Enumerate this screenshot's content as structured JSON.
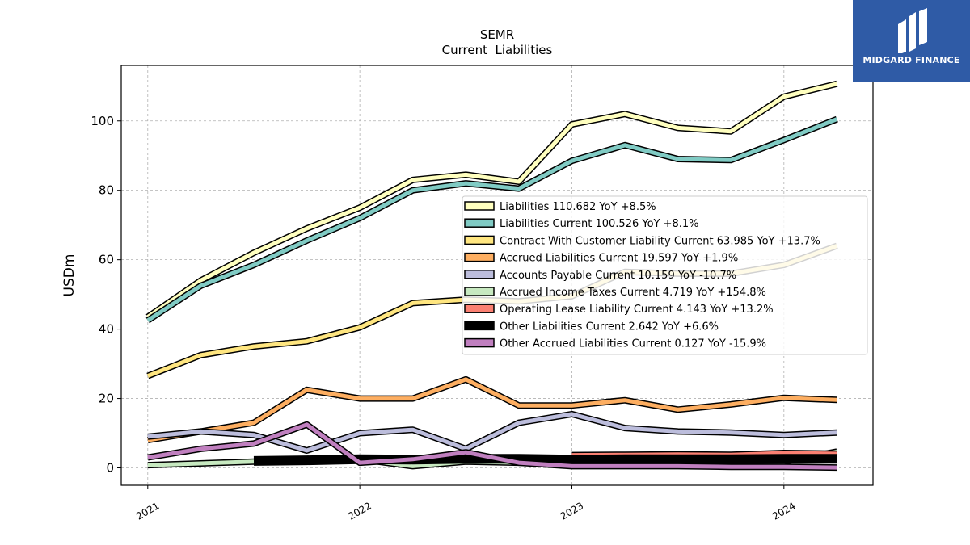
{
  "chart_data": {
    "type": "line",
    "title": "SEMR",
    "subtitle": "Current  Liabilities",
    "ylabel": "USDm",
    "xlabel": "",
    "ylim": [
      -5,
      116
    ],
    "xlim": [
      2020.875,
      2024.42
    ],
    "yticks": [
      0,
      20,
      40,
      60,
      80,
      100
    ],
    "xticks": [
      {
        "value": 2021.0,
        "label": "2021"
      },
      {
        "value": 2022.0,
        "label": "2022"
      },
      {
        "value": 2023.0,
        "label": "2023"
      },
      {
        "value": 2024.0,
        "label": "2024"
      }
    ],
    "grid": true,
    "legend_position": "center-right",
    "series": [
      {
        "name": "Liabilities",
        "legend": "Liabilities  110.682 YoY +8.5%",
        "color": "#ffffbf",
        "x": [
          2021.0,
          2021.25,
          2021.5,
          2021.75,
          2022.0,
          2022.25,
          2022.5,
          2022.75,
          2023.0,
          2023.25,
          2023.5,
          2023.75,
          2024.0,
          2024.25
        ],
        "y": [
          43.5,
          54,
          62,
          69,
          75,
          83,
          84.5,
          82.5,
          99,
          102,
          98,
          97,
          107,
          110.7
        ]
      },
      {
        "name": "Liabilities Current",
        "legend": "Liabilities Current  100.526 YoY +8.1%",
        "color": "#80cbc4",
        "x": [
          2021.0,
          2021.25,
          2021.5,
          2021.75,
          2022.0,
          2022.25,
          2022.5,
          2022.75,
          2023.0,
          2023.25,
          2023.5,
          2023.75,
          2024.0,
          2024.25
        ],
        "y": [
          42.5,
          52.5,
          58.5,
          65.5,
          72,
          80,
          82,
          80.5,
          88.5,
          93,
          89,
          88.7,
          94.5,
          100.5
        ]
      },
      {
        "name": "Contract With Customer Liability Current",
        "legend": "Contract With Customer Liability Current  63.985 YoY +13.7%",
        "color": "#ffe680",
        "x": [
          2021.0,
          2021.25,
          2021.5,
          2021.75,
          2022.0,
          2022.25,
          2022.5,
          2022.75,
          2023.0,
          2023.25,
          2023.5,
          2023.75,
          2024.0,
          2024.25
        ],
        "y": [
          26.5,
          32.5,
          35,
          36.5,
          40.5,
          47.5,
          48.5,
          48,
          49.5,
          56.5,
          56,
          56,
          58.5,
          64
        ]
      },
      {
        "name": "Accrued Liabilities Current",
        "legend": "Accrued Liabilities Current  19.597 YoY +1.9%",
        "color": "#fdae61",
        "x": [
          2021.0,
          2021.25,
          2021.5,
          2021.75,
          2022.0,
          2022.25,
          2022.5,
          2022.75,
          2023.0,
          2023.25,
          2023.5,
          2023.75,
          2024.0,
          2024.25
        ],
        "y": [
          8,
          10.5,
          13,
          22.5,
          20,
          20,
          25.5,
          18,
          18,
          19.5,
          16.8,
          18.3,
          20.2,
          19.6
        ]
      },
      {
        "name": "Accounts Payable Current",
        "legend": "Accounts Payable Current  10.159 YoY -10.7%",
        "color": "#bcbddc",
        "x": [
          2021.0,
          2021.25,
          2021.5,
          2021.75,
          2022.0,
          2022.25,
          2022.5,
          2022.75,
          2023.0,
          2023.25,
          2023.5,
          2023.75,
          2024.0,
          2024.25
        ],
        "y": [
          9,
          10.5,
          9.5,
          5,
          10,
          11,
          5.5,
          13,
          15.5,
          11.5,
          10.5,
          10.2,
          9.5,
          10.2
        ]
      },
      {
        "name": "Accrued Income Taxes Current",
        "legend": "Accrued Income Taxes Current  4.719 YoY +154.8%",
        "color": "#c7e9c0",
        "x": [
          2021.0,
          2021.5,
          2022.0,
          2022.25,
          2022.5,
          2022.75,
          2023.0,
          2023.25,
          2023.5,
          2023.75,
          2024.0,
          2024.25
        ],
        "y": [
          0.8,
          1.8,
          2.5,
          0.5,
          1.8,
          1.5,
          1.8,
          1.8,
          1.8,
          1.8,
          1.8,
          4.7
        ]
      },
      {
        "name": "Operating Lease Liability Current",
        "legend": "Operating Lease Liability Current  4.143 YoY +13.2%",
        "color": "#fb8072",
        "x": [
          2023.0,
          2023.25,
          2023.5,
          2023.75,
          2024.0,
          2024.25
        ],
        "y": [
          3.7,
          3.8,
          3.9,
          3.8,
          4.3,
          4.1
        ]
      },
      {
        "name": "Other Liabilities Current",
        "legend": "Other Liabilities Current  2.642 YoY +6.6%",
        "color": "#000000",
        "x": [
          2021.5,
          2021.75,
          2022.0,
          2022.25,
          2022.5,
          2022.75,
          2023.0,
          2023.25,
          2023.5,
          2023.75,
          2024.0,
          2024.25
        ],
        "y": [
          2.0,
          2.2,
          2.5,
          2.4,
          2.6,
          2.6,
          2.4,
          2.5,
          2.5,
          2.5,
          2.6,
          2.6
        ]
      },
      {
        "name": "Other Accrued Liabilities Current",
        "legend": "Other Accrued Liabilities Current  0.127 YoY -15.9%",
        "color": "#c07fbf",
        "x": [
          2021.0,
          2021.25,
          2021.5,
          2021.75,
          2022.0,
          2022.25,
          2022.5,
          2022.75,
          2023.0,
          2023.25,
          2023.5,
          2023.75,
          2024.0,
          2024.25
        ],
        "y": [
          3,
          5.5,
          7,
          12.5,
          1.5,
          2.5,
          4.5,
          1.5,
          0.5,
          0.5,
          0.5,
          0.3,
          0.3,
          0.1
        ]
      }
    ]
  },
  "logo": {
    "text": "MIDGARD FINANCE",
    "color": "#2f5ba6"
  }
}
